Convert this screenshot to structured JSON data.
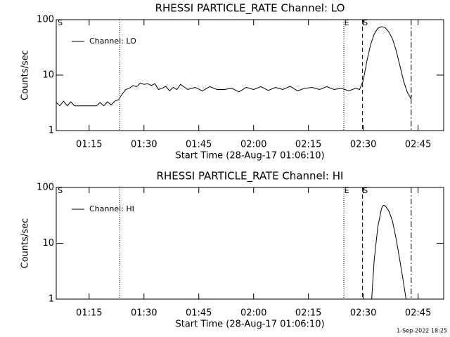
{
  "chart_data": [
    {
      "type": "line",
      "title": "RHESSI PARTICLE_RATE Channel: LO",
      "x_label": "Start Time (28-Aug-17 01:06:10)",
      "y_label": "Counts/sec",
      "log_y": true,
      "legend": "upper left",
      "xlim": [
        66,
        172
      ],
      "ylim": [
        1,
        100
      ],
      "xticks": [
        {
          "value": 75,
          "label": "01:15"
        },
        {
          "value": 90,
          "label": "01:30"
        },
        {
          "value": 105,
          "label": "01:45"
        },
        {
          "value": 120,
          "label": "02:00"
        },
        {
          "value": 135,
          "label": "02:15"
        },
        {
          "value": 150,
          "label": "02:30"
        },
        {
          "value": 165,
          "label": "02:45"
        }
      ],
      "yticks": [
        1,
        10,
        100
      ],
      "markers": [
        {
          "x": 83.4,
          "style": "dotted"
        },
        {
          "x": 144.7,
          "style": "dotted"
        },
        {
          "x": 149.8,
          "style": "dashed"
        },
        {
          "x": 163.1,
          "style": "dashdot"
        }
      ],
      "annotations": [
        {
          "text": "S",
          "x": 66.3
        },
        {
          "text": "E",
          "x": 144.7
        },
        {
          "text": "S",
          "x": 149.8
        }
      ],
      "series": [
        {
          "name": "Channel: LO",
          "color": "#000000",
          "x": [
            66,
            67,
            68,
            69,
            70,
            71,
            72,
            73,
            74,
            75,
            76,
            77,
            78,
            79,
            80,
            81,
            82,
            83,
            84,
            85,
            86,
            87,
            88,
            89,
            90,
            91,
            92,
            93,
            94,
            95,
            96,
            97,
            98,
            99,
            100,
            102,
            104,
            106,
            108,
            110,
            112,
            114,
            116,
            118,
            120,
            122,
            124,
            126,
            128,
            130,
            132,
            134,
            136,
            138,
            140,
            142,
            144,
            146,
            148,
            149,
            150,
            151,
            152,
            153,
            154,
            155,
            156,
            157,
            158,
            159,
            160,
            161,
            162,
            163,
            163.3
          ],
          "values": [
            3.2,
            2.8,
            3.4,
            2.8,
            3.3,
            2.8,
            2.8,
            2.8,
            2.8,
            2.8,
            2.8,
            2.8,
            3.2,
            2.8,
            3.3,
            2.9,
            3.4,
            3.6,
            4.5,
            5.5,
            5.8,
            6.5,
            6.2,
            7.2,
            6.8,
            7.0,
            6.5,
            7.0,
            5.5,
            5.8,
            6.3,
            5.2,
            6.0,
            5.5,
            6.8,
            5.5,
            6.0,
            5.2,
            6.2,
            5.5,
            5.5,
            5.8,
            5.0,
            6.0,
            5.5,
            6.2,
            5.3,
            6.0,
            5.5,
            6.3,
            5.2,
            5.8,
            6.0,
            5.5,
            6.2,
            5.5,
            5.8,
            5.2,
            5.8,
            5.5,
            8,
            18,
            35,
            55,
            70,
            75,
            72,
            60,
            45,
            28,
            15,
            8,
            5,
            3.8,
            4.3
          ]
        }
      ]
    },
    {
      "type": "line",
      "title": "RHESSI PARTICLE_RATE Channel: HI",
      "x_label": "Start Time (28-Aug-17 01:06:10)",
      "y_label": "Counts/sec",
      "log_y": true,
      "legend": "upper left",
      "xlim": [
        66,
        172
      ],
      "ylim": [
        1,
        100
      ],
      "xticks": [
        {
          "value": 75,
          "label": "01:15"
        },
        {
          "value": 90,
          "label": "01:30"
        },
        {
          "value": 105,
          "label": "01:45"
        },
        {
          "value": 120,
          "label": "02:00"
        },
        {
          "value": 135,
          "label": "02:15"
        },
        {
          "value": 150,
          "label": "02:30"
        },
        {
          "value": 165,
          "label": "02:45"
        }
      ],
      "yticks": [
        1,
        10,
        100
      ],
      "markers": [
        {
          "x": 83.4,
          "style": "dotted"
        },
        {
          "x": 144.7,
          "style": "dotted"
        },
        {
          "x": 149.8,
          "style": "dashed"
        },
        {
          "x": 163.1,
          "style": "dashdot"
        }
      ],
      "annotations": [
        {
          "text": "S",
          "x": 66.3
        },
        {
          "text": "E",
          "x": 144.7
        },
        {
          "text": "S",
          "x": 149.8
        }
      ],
      "series": [
        {
          "name": "Channel: HI",
          "color": "#000000",
          "x": [
            152.3,
            153,
            154,
            155,
            155.5,
            156,
            157,
            158,
            159,
            160,
            161,
            161.7
          ],
          "values": [
            1,
            5,
            20,
            42,
            48,
            47,
            38,
            25,
            12,
            5,
            2,
            1
          ]
        }
      ]
    }
  ],
  "footer": "1-Sep-2022 18:25"
}
